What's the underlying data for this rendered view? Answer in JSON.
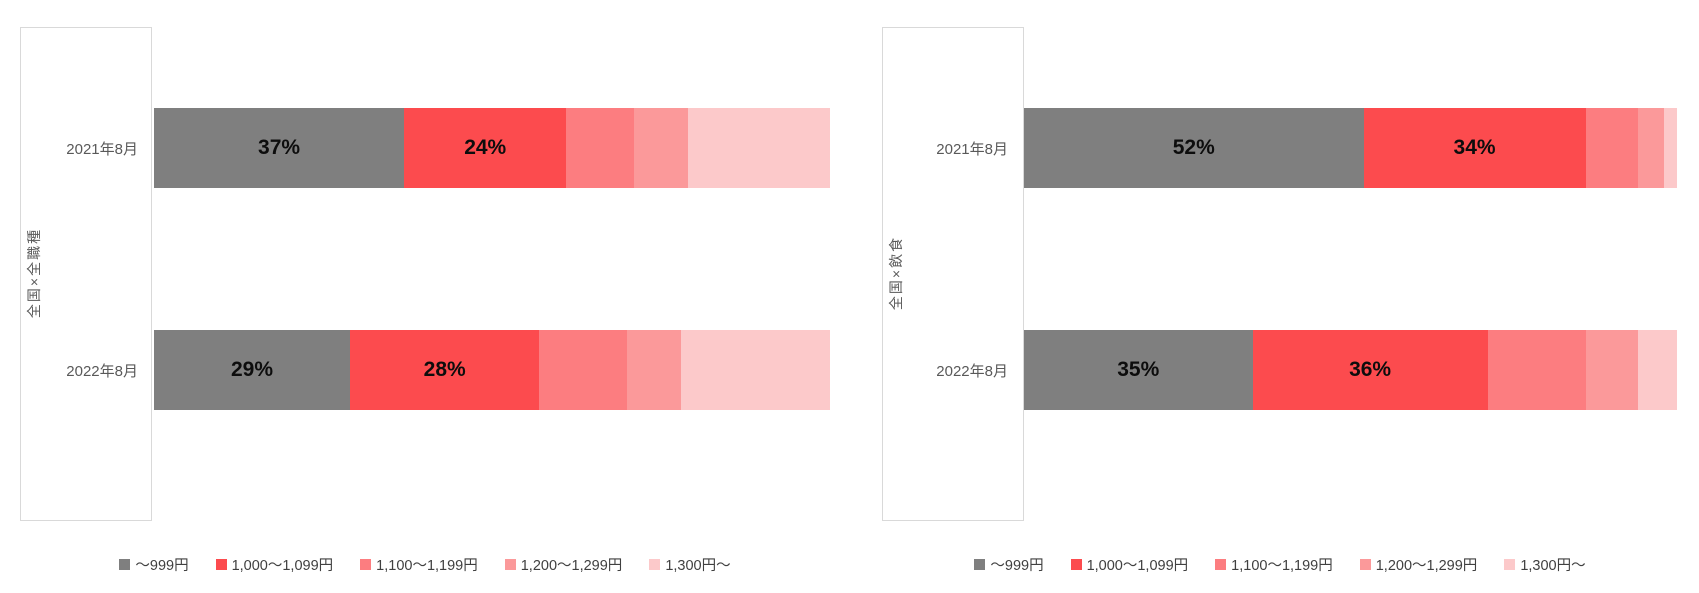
{
  "page": {
    "background_color": "#ffffff",
    "border_color": "#d9d9d9",
    "category_text_color": "#595959",
    "legend_text_color": "#404040",
    "data_label_color": "#0d0d0d"
  },
  "legend": {
    "items": [
      {
        "label": "～999円",
        "color": "#7f7f7f"
      },
      {
        "label": "1,000～1,099円",
        "color": "#fc4b4e"
      },
      {
        "label": "1,100～1,199円",
        "color": "#fc7d80"
      },
      {
        "label": "1,200～1,299円",
        "color": "#fb999a"
      },
      {
        "label": "1,300円～",
        "color": "#fcc9ca"
      }
    ]
  },
  "chart_data": [
    {
      "type": "bar",
      "orientation": "horizontal",
      "stacked": true,
      "axis_title": "全国×全職種",
      "categories": [
        "2021年8月",
        "2022年8月"
      ],
      "series": [
        {
          "name": "～999円",
          "color": "#7f7f7f",
          "values": [
            37,
            29
          ]
        },
        {
          "name": "1,000～1,099円",
          "color": "#fc4b4e",
          "values": [
            24,
            28
          ]
        },
        {
          "name": "1,100～1,199円",
          "color": "#fc7d80",
          "values": [
            10,
            13
          ]
        },
        {
          "name": "1,200～1,299円",
          "color": "#fb999a",
          "values": [
            8,
            8
          ]
        },
        {
          "name": "1,300円～",
          "color": "#fcc9ca",
          "values": [
            21,
            22
          ]
        }
      ],
      "shown_data_labels": [
        [
          "37%",
          "24%"
        ],
        [
          "29%",
          "28%"
        ]
      ],
      "xlim": [
        0,
        100
      ],
      "grid": false,
      "legend_position": "bottom"
    },
    {
      "type": "bar",
      "orientation": "horizontal",
      "stacked": true,
      "axis_title": "全国×飲食",
      "categories": [
        "2021年8月",
        "2022年8月"
      ],
      "series": [
        {
          "name": "～999円",
          "color": "#7f7f7f",
          "values": [
            52,
            35
          ]
        },
        {
          "name": "1,000～1,099円",
          "color": "#fc4b4e",
          "values": [
            34,
            36
          ]
        },
        {
          "name": "1,100～1,199円",
          "color": "#fc7d80",
          "values": [
            8,
            15
          ]
        },
        {
          "name": "1,200～1,299円",
          "color": "#fb999a",
          "values": [
            4,
            8
          ]
        },
        {
          "name": "1,300円～",
          "color": "#fcc9ca",
          "values": [
            2,
            6
          ]
        }
      ],
      "shown_data_labels": [
        [
          "52%",
          "34%"
        ],
        [
          "35%",
          "36%"
        ]
      ],
      "xlim": [
        0,
        100
      ],
      "grid": false,
      "legend_position": "bottom"
    }
  ]
}
